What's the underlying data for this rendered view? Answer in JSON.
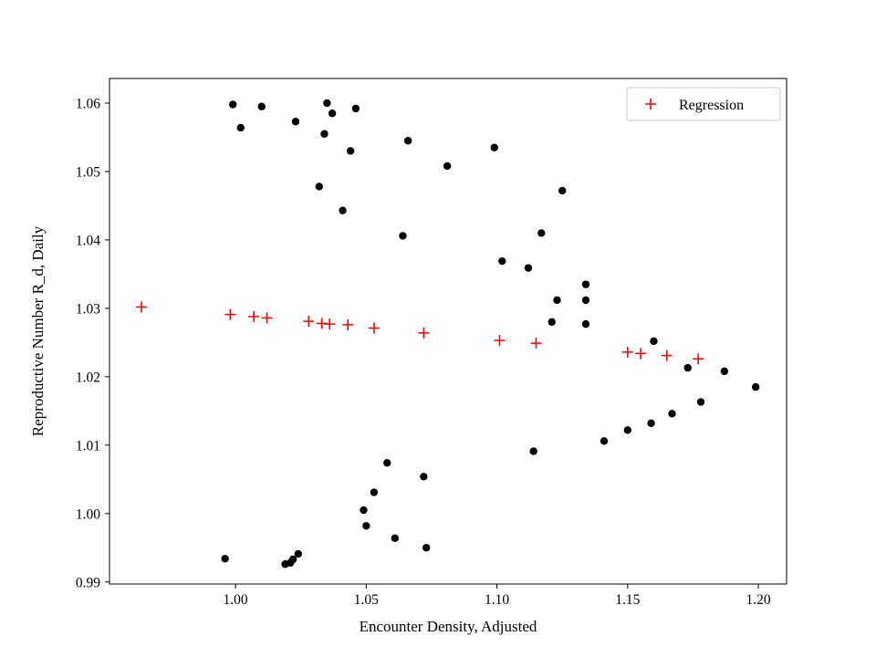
{
  "figure": {
    "background": "#ffffff"
  },
  "chart_data": {
    "type": "scatter",
    "title": "",
    "xlabel": "Encounter Density, Adjusted",
    "ylabel": "Reproductive Number R_d, Daily",
    "xlim": [
      0.9518,
      1.2108
    ],
    "ylim": [
      0.9897,
      1.0636
    ],
    "xticks": [
      1.0,
      1.05,
      1.1,
      1.15,
      1.2
    ],
    "xtick_labels": [
      "1.00",
      "1.05",
      "1.10",
      "1.15",
      "1.20"
    ],
    "yticks": [
      0.99,
      1.0,
      1.01,
      1.02,
      1.03,
      1.04,
      1.05,
      1.06
    ],
    "ytick_labels": [
      "0.99",
      "1.00",
      "1.01",
      "1.02",
      "1.03",
      "1.04",
      "1.05",
      "1.06"
    ],
    "grid": false,
    "legend_position": "upper right",
    "series": [
      {
        "name": "data-points",
        "marker": "circle",
        "color": "#000000",
        "in_legend": false,
        "points": [
          [
            0.999,
            1.0598
          ],
          [
            1.002,
            1.0564
          ],
          [
            1.01,
            1.0595
          ],
          [
            1.023,
            1.0573
          ],
          [
            1.035,
            1.06
          ],
          [
            1.037,
            1.0585
          ],
          [
            1.034,
            1.0555
          ],
          [
            1.046,
            1.0592
          ],
          [
            1.044,
            1.053
          ],
          [
            1.032,
            1.0478
          ],
          [
            1.041,
            1.0443
          ],
          [
            1.066,
            1.0545
          ],
          [
            1.064,
            1.0406
          ],
          [
            1.081,
            1.0508
          ],
          [
            1.099,
            1.0535
          ],
          [
            1.102,
            1.0369
          ],
          [
            1.112,
            1.0359
          ],
          [
            1.117,
            1.041
          ],
          [
            1.125,
            1.0472
          ],
          [
            1.123,
            1.0312
          ],
          [
            1.121,
            1.028
          ],
          [
            1.134,
            1.0335
          ],
          [
            1.134,
            1.0312
          ],
          [
            1.134,
            1.0277
          ],
          [
            1.16,
            1.0252
          ],
          [
            1.173,
            1.0213
          ],
          [
            1.187,
            1.0208
          ],
          [
            1.199,
            1.0185
          ],
          [
            1.178,
            1.0163
          ],
          [
            1.167,
            1.0146
          ],
          [
            1.159,
            1.0132
          ],
          [
            1.15,
            1.0122
          ],
          [
            1.141,
            1.0106
          ],
          [
            1.114,
            1.0091
          ],
          [
            1.058,
            1.0074
          ],
          [
            1.072,
            1.0054
          ],
          [
            1.053,
            1.0031
          ],
          [
            1.049,
            1.0005
          ],
          [
            1.05,
            0.9982
          ],
          [
            1.061,
            0.9964
          ],
          [
            1.073,
            0.995
          ],
          [
            0.996,
            0.9934
          ],
          [
            1.019,
            0.9926
          ],
          [
            1.021,
            0.9928
          ],
          [
            1.024,
            0.9941
          ],
          [
            1.022,
            0.9933
          ]
        ]
      },
      {
        "name": "Regression",
        "marker": "plus",
        "color": "#ff0000",
        "in_legend": true,
        "points": [
          [
            0.964,
            1.0302
          ],
          [
            0.998,
            1.0291
          ],
          [
            1.007,
            1.0288
          ],
          [
            1.012,
            1.0286
          ],
          [
            1.028,
            1.0281
          ],
          [
            1.033,
            1.0278
          ],
          [
            1.036,
            1.0277
          ],
          [
            1.043,
            1.0276
          ],
          [
            1.053,
            1.0271
          ],
          [
            1.072,
            1.0264
          ],
          [
            1.101,
            1.0253
          ],
          [
            1.115,
            1.0249
          ],
          [
            1.15,
            1.0236
          ],
          [
            1.155,
            1.0234
          ],
          [
            1.165,
            1.0231
          ],
          [
            1.177,
            1.0226
          ]
        ]
      }
    ]
  },
  "legend": {
    "label": "Regression"
  }
}
